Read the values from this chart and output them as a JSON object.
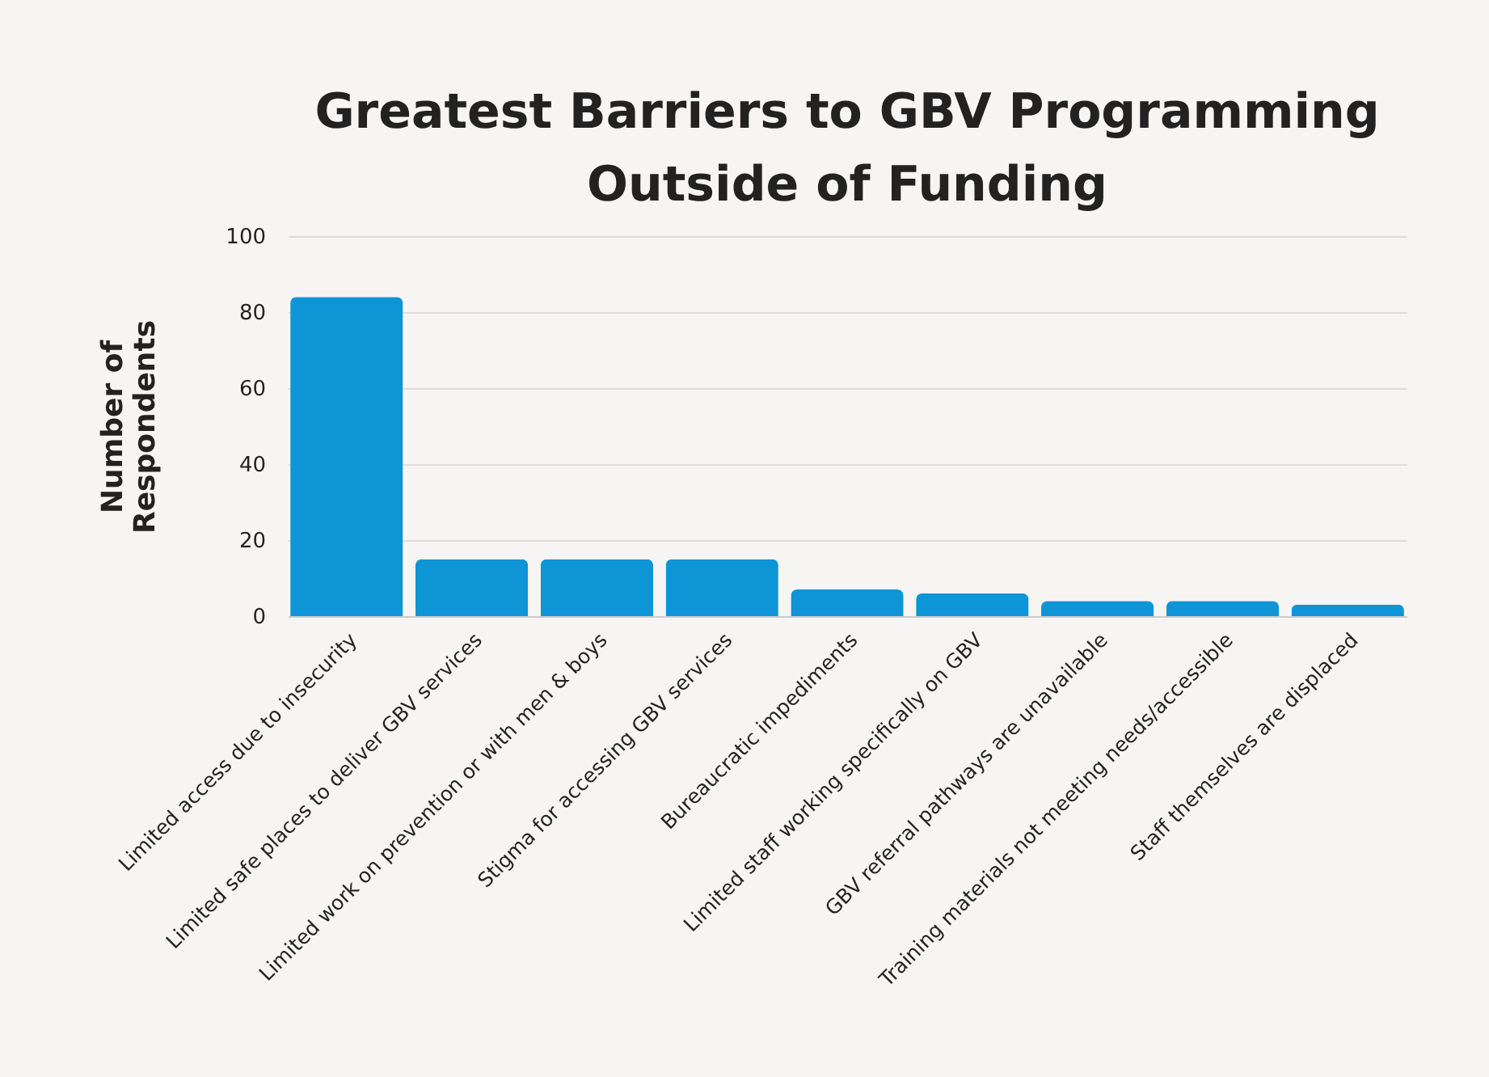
{
  "chart_data": {
    "type": "bar",
    "title": "Greatest Barriers to GBV Programming Outside of Funding",
    "ylabel": "Number of Respondents",
    "categories": [
      "Limited access due to insecurity",
      "Limited safe places to deliver GBV services",
      "Limited work on prevention or with men & boys",
      "Stigma for accessing GBV services",
      "Bureaucratic impediments",
      "Limited staff working specifically on GBV",
      "GBV referral pathways are unavailable",
      "Training materials not meeting needs/accessible",
      "Staff themselves are displaced"
    ],
    "values": [
      84,
      15,
      15,
      15,
      7,
      6,
      4,
      4,
      3
    ],
    "color": "#0d95d6",
    "ylim": [
      0,
      100
    ],
    "yticks": [
      0,
      20,
      40,
      60,
      80,
      100
    ],
    "grid": "y"
  }
}
